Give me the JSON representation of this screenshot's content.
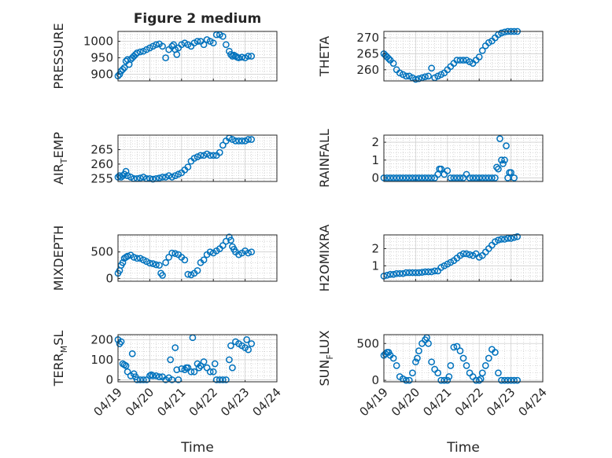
{
  "figure": {
    "title": "Figure 2 medium"
  },
  "chart_data": [
    {
      "type": "scatter",
      "panel": 0,
      "title": "Figure 2 medium",
      "ylabel": "PRESSURE",
      "xlim": [
        0,
        5
      ],
      "ylim": [
        880,
        1030
      ],
      "yticks": [
        900,
        950,
        1000
      ],
      "xticks": [
        "04/19",
        "04/20",
        "04/21",
        "04/22",
        "04/23",
        "04/24"
      ],
      "show_xticks": false,
      "x": [
        0,
        0.05,
        0.1,
        0.15,
        0.2,
        0.25,
        0.3,
        0.35,
        0.4,
        0.45,
        0.5,
        0.55,
        0.6,
        0.7,
        0.8,
        0.9,
        1,
        1.1,
        1.2,
        1.3,
        1.4,
        1.5,
        1.6,
        1.7,
        1.75,
        1.8,
        1.85,
        1.9,
        2,
        2.1,
        2.2,
        2.3,
        2.4,
        2.5,
        2.6,
        2.7,
        2.8,
        2.9,
        3,
        3.1,
        3.2,
        3.3,
        3.4,
        3.5,
        3.55,
        3.6,
        3.65,
        3.7,
        3.75,
        3.8,
        3.9,
        4,
        4.1,
        4.2
      ],
      "y": [
        895,
        900,
        910,
        915,
        920,
        940,
        945,
        930,
        945,
        950,
        955,
        960,
        965,
        968,
        970,
        975,
        980,
        985,
        990,
        992,
        985,
        950,
        975,
        985,
        990,
        975,
        960,
        980,
        990,
        995,
        990,
        985,
        995,
        1000,
        1000,
        990,
        1005,
        1000,
        995,
        1020,
        1020,
        1015,
        990,
        970,
        960,
        955,
        958,
        955,
        952,
        950,
        952,
        950,
        955,
        955
      ]
    },
    {
      "type": "scatter",
      "panel": 1,
      "ylabel": "THETA",
      "xlim": [
        0,
        5
      ],
      "ylim": [
        256.5,
        272
      ],
      "yticks": [
        260,
        265,
        270
      ],
      "xticks": [
        "04/19",
        "04/20",
        "04/21",
        "04/22",
        "04/23",
        "04/24"
      ],
      "show_xticks": false,
      "x": [
        0,
        0.05,
        0.1,
        0.15,
        0.2,
        0.3,
        0.4,
        0.5,
        0.6,
        0.7,
        0.8,
        0.9,
        1,
        1.1,
        1.2,
        1.3,
        1.4,
        1.5,
        1.6,
        1.7,
        1.8,
        1.9,
        2,
        2.1,
        2.2,
        2.3,
        2.4,
        2.5,
        2.6,
        2.7,
        2.8,
        2.9,
        3,
        3.1,
        3.2,
        3.3,
        3.4,
        3.5,
        3.6,
        3.7,
        3.8,
        3.9,
        4,
        4.1,
        4.2
      ],
      "y": [
        265,
        264.5,
        264,
        263.5,
        263,
        262,
        260,
        259,
        258.5,
        258,
        258,
        257.5,
        257,
        257.2,
        257.5,
        257.8,
        258,
        260.5,
        257.5,
        258,
        258.5,
        259,
        260,
        261,
        262,
        263,
        263,
        263,
        263,
        262.5,
        262,
        263,
        264,
        266,
        267.5,
        268.5,
        269,
        270,
        271,
        271.5,
        271.8,
        272,
        272,
        272,
        272
      ]
    },
    {
      "type": "scatter",
      "panel": 2,
      "ylabel": "AIR_TEMP",
      "ylabel_main": "AIR",
      "ylabel_sub": "T",
      "ylabel_rest": "EMP",
      "xlim": [
        0,
        5
      ],
      "ylim": [
        254,
        270
      ],
      "yticks": [
        255,
        260,
        265
      ],
      "xticks": [
        "04/19",
        "04/20",
        "04/21",
        "04/22",
        "04/23",
        "04/24"
      ],
      "show_xticks": false,
      "x": [
        0,
        0.05,
        0.1,
        0.15,
        0.2,
        0.25,
        0.3,
        0.4,
        0.5,
        0.6,
        0.7,
        0.8,
        0.9,
        1,
        1.1,
        1.2,
        1.3,
        1.4,
        1.5,
        1.6,
        1.7,
        1.8,
        1.9,
        2,
        2.1,
        2.2,
        2.3,
        2.4,
        2.5,
        2.6,
        2.7,
        2.8,
        2.9,
        3,
        3.1,
        3.2,
        3.3,
        3.4,
        3.5,
        3.6,
        3.7,
        3.8,
        3.9,
        4,
        4.1,
        4.2
      ],
      "y": [
        255.5,
        256,
        255.5,
        256,
        256.5,
        257.5,
        256,
        255.5,
        255,
        255,
        255.2,
        255.5,
        255,
        255,
        254.8,
        255,
        255.2,
        255.5,
        255.5,
        256,
        255.5,
        256,
        256.5,
        257,
        258,
        259,
        261,
        262,
        262.5,
        263,
        263,
        263.5,
        263,
        263,
        263,
        264,
        266.5,
        268,
        269,
        268.5,
        268,
        268,
        268,
        268,
        268.5,
        268.5
      ]
    },
    {
      "type": "scatter",
      "panel": 3,
      "ylabel": "RAINFALL",
      "xlim": [
        0,
        5
      ],
      "ylim": [
        -0.2,
        2.4
      ],
      "yticks": [
        0,
        1,
        2
      ],
      "xticks": [
        "04/19",
        "04/20",
        "04/21",
        "04/22",
        "04/23",
        "04/24"
      ],
      "show_xticks": false,
      "x": [
        0,
        0.1,
        0.2,
        0.3,
        0.4,
        0.5,
        0.6,
        0.7,
        0.8,
        0.9,
        1,
        1.1,
        1.2,
        1.3,
        1.4,
        1.5,
        1.6,
        1.7,
        1.75,
        1.8,
        1.9,
        2,
        2.1,
        2.2,
        2.3,
        2.4,
        2.5,
        2.6,
        2.7,
        2.8,
        2.9,
        3,
        3.1,
        3.2,
        3.3,
        3.4,
        3.5,
        3.55,
        3.6,
        3.65,
        3.7,
        3.75,
        3.8,
        3.85,
        3.9,
        3.95,
        4,
        4.1
      ],
      "y": [
        0,
        0,
        0,
        0,
        0,
        0,
        0,
        0,
        0,
        0,
        0,
        0,
        0,
        0,
        0,
        0,
        0,
        0.2,
        0.5,
        0.5,
        0.2,
        0.4,
        0,
        0,
        0,
        0,
        0,
        0.2,
        0,
        0,
        0,
        0,
        0,
        0,
        0,
        0,
        0,
        0.6,
        0.5,
        2.2,
        1,
        0.8,
        1,
        1.8,
        0,
        0.3,
        0.3,
        0
      ]
    },
    {
      "type": "scatter",
      "panel": 4,
      "ylabel": "MIXDEPTH",
      "xlim": [
        0,
        5
      ],
      "ylim": [
        -50,
        820
      ],
      "yticks": [
        0,
        500
      ],
      "xticks": [
        "04/19",
        "04/20",
        "04/21",
        "04/22",
        "04/23",
        "04/24"
      ],
      "show_xticks": false,
      "x": [
        0,
        0.05,
        0.1,
        0.15,
        0.2,
        0.25,
        0.3,
        0.4,
        0.5,
        0.6,
        0.7,
        0.8,
        0.9,
        1,
        1.1,
        1.2,
        1.3,
        1.35,
        1.4,
        1.5,
        1.6,
        1.7,
        1.8,
        1.9,
        2,
        2.1,
        2.2,
        2.3,
        2.4,
        2.5,
        2.6,
        2.7,
        2.8,
        2.9,
        3,
        3.1,
        3.2,
        3.3,
        3.4,
        3.5,
        3.55,
        3.6,
        3.65,
        3.7,
        3.8,
        3.9,
        4,
        4.1,
        4.2
      ],
      "y": [
        100,
        150,
        250,
        300,
        380,
        400,
        420,
        440,
        400,
        380,
        380,
        350,
        320,
        290,
        280,
        260,
        250,
        100,
        60,
        300,
        400,
        480,
        470,
        450,
        400,
        350,
        80,
        70,
        100,
        150,
        300,
        350,
        450,
        500,
        480,
        520,
        560,
        620,
        700,
        780,
        720,
        600,
        550,
        500,
        450,
        480,
        520,
        480,
        500
      ]
    },
    {
      "type": "scatter",
      "panel": 5,
      "ylabel": "H2OMIXRA",
      "xlim": [
        0,
        5
      ],
      "ylim": [
        0.1,
        2.8
      ],
      "yticks": [
        1,
        2
      ],
      "xticks": [
        "04/19",
        "04/20",
        "04/21",
        "04/22",
        "04/23",
        "04/24"
      ],
      "show_xticks": false,
      "x": [
        0,
        0.1,
        0.2,
        0.3,
        0.4,
        0.5,
        0.6,
        0.7,
        0.8,
        0.9,
        1,
        1.1,
        1.2,
        1.3,
        1.4,
        1.5,
        1.6,
        1.7,
        1.8,
        1.9,
        2,
        2.1,
        2.2,
        2.3,
        2.4,
        2.5,
        2.6,
        2.7,
        2.8,
        2.9,
        3,
        3.1,
        3.2,
        3.3,
        3.4,
        3.5,
        3.6,
        3.7,
        3.8,
        3.9,
        4,
        4.1,
        4.2
      ],
      "y": [
        0.4,
        0.45,
        0.5,
        0.5,
        0.55,
        0.55,
        0.55,
        0.6,
        0.6,
        0.6,
        0.6,
        0.6,
        0.62,
        0.65,
        0.65,
        0.65,
        0.7,
        0.7,
        0.9,
        1,
        1.1,
        1.2,
        1.3,
        1.45,
        1.6,
        1.7,
        1.7,
        1.65,
        1.6,
        1.7,
        1.5,
        1.6,
        1.8,
        2.0,
        2.2,
        2.4,
        2.5,
        2.55,
        2.55,
        2.6,
        2.6,
        2.65,
        2.7
      ]
    },
    {
      "type": "scatter",
      "panel": 6,
      "ylabel": "TERR_MSL",
      "ylabel_main": "TERR",
      "ylabel_sub": "M",
      "ylabel_rest": "SL",
      "xlim": [
        0,
        5
      ],
      "ylim": [
        -10,
        225
      ],
      "yticks": [
        0,
        100,
        200
      ],
      "xticks": [
        "04/19",
        "04/20",
        "04/21",
        "04/22",
        "04/23",
        "04/24"
      ],
      "show_xticks": true,
      "xlabel": "Time",
      "x": [
        0,
        0.05,
        0.1,
        0.15,
        0.2,
        0.25,
        0.3,
        0.4,
        0.45,
        0.5,
        0.55,
        0.6,
        0.7,
        0.8,
        0.9,
        1,
        1.05,
        1.1,
        1.2,
        1.3,
        1.4,
        1.5,
        1.6,
        1.65,
        1.7,
        1.8,
        1.85,
        1.9,
        2,
        2.1,
        2.15,
        2.2,
        2.3,
        2.35,
        2.4,
        2.5,
        2.55,
        2.6,
        2.7,
        2.8,
        2.9,
        3,
        3.05,
        3.1,
        3.2,
        3.3,
        3.4,
        3.5,
        3.55,
        3.6,
        3.7,
        3.8,
        3.9,
        4,
        4.05,
        4.1,
        4.2
      ],
      "y": [
        200,
        180,
        190,
        80,
        75,
        70,
        40,
        20,
        130,
        30,
        15,
        0,
        0,
        0,
        0,
        20,
        25,
        20,
        20,
        15,
        15,
        0,
        10,
        100,
        0,
        160,
        50,
        0,
        55,
        50,
        60,
        60,
        40,
        210,
        40,
        80,
        60,
        70,
        90,
        60,
        40,
        40,
        80,
        0,
        0,
        0,
        0,
        100,
        170,
        60,
        190,
        180,
        170,
        160,
        200,
        150,
        180
      ]
    },
    {
      "type": "scatter",
      "panel": 7,
      "ylabel": "SUN_FLUX",
      "ylabel_main": "SUN",
      "ylabel_sub": "F",
      "ylabel_rest": "LUX",
      "xlim": [
        0,
        5
      ],
      "ylim": [
        -20,
        620
      ],
      "yticks": [
        0,
        500
      ],
      "xticks": [
        "04/19",
        "04/20",
        "04/21",
        "04/22",
        "04/23",
        "04/24"
      ],
      "show_xticks": true,
      "xlabel": "Time",
      "x": [
        0,
        0.05,
        0.1,
        0.15,
        0.2,
        0.3,
        0.4,
        0.5,
        0.6,
        0.7,
        0.8,
        0.9,
        1,
        1.05,
        1.1,
        1.2,
        1.3,
        1.35,
        1.4,
        1.5,
        1.6,
        1.7,
        1.8,
        1.9,
        2,
        2.05,
        2.1,
        2.2,
        2.3,
        2.4,
        2.5,
        2.6,
        2.7,
        2.8,
        2.9,
        3,
        3.05,
        3.1,
        3.2,
        3.3,
        3.4,
        3.5,
        3.6,
        3.7,
        3.8,
        3.9,
        4,
        4.1,
        4.2
      ],
      "y": [
        340,
        360,
        380,
        380,
        340,
        300,
        200,
        50,
        20,
        0,
        0,
        100,
        250,
        300,
        400,
        500,
        550,
        580,
        500,
        250,
        150,
        100,
        0,
        0,
        0,
        50,
        200,
        450,
        460,
        400,
        300,
        200,
        100,
        50,
        0,
        0,
        20,
        100,
        200,
        300,
        420,
        380,
        100,
        0,
        0,
        0,
        0,
        0,
        0
      ]
    }
  ]
}
